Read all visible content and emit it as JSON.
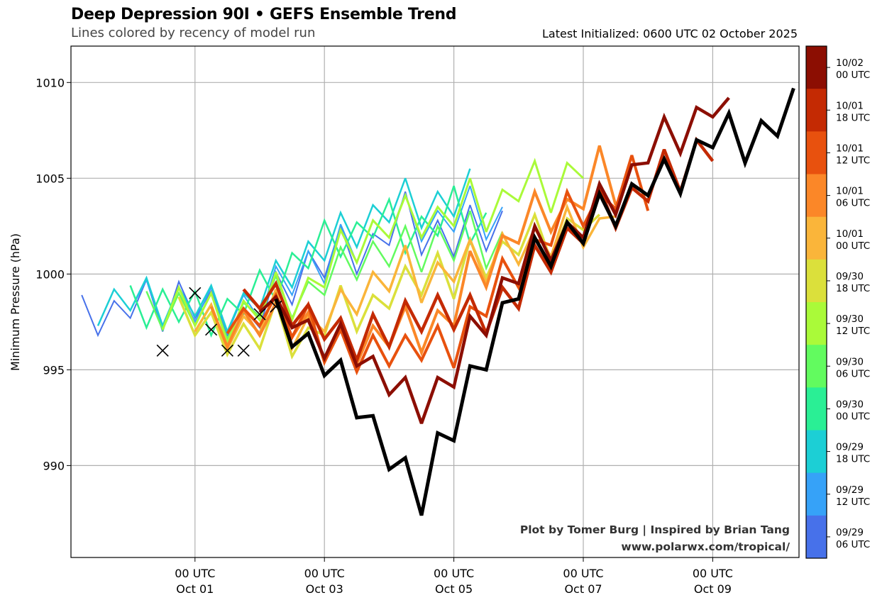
{
  "header": {
    "title": "Deep Depression 90I • GEFS Ensemble Trend",
    "subtitle": "Lines colored by recency of model run",
    "latest": "Latest Initialized: 0600 UTC 02 October 2025"
  },
  "credits": {
    "line1": "Plot by Tomer Burg | Inspired by Brian Tang",
    "line2": "www.polarwx.com/tropical/"
  },
  "chart_data": {
    "type": "line",
    "title": "Deep Depression 90I • GEFS Ensemble Trend",
    "subtitle": "Lines colored by recency of model run",
    "xlabel": "",
    "ylabel": "Minimum Pressure (hPa)",
    "x_unit": "hours since 00 UTC Oct 01 2025",
    "x_step_hours": 6,
    "xlim_hours": [
      -46,
      224
    ],
    "ylim": [
      985.2,
      1011.9
    ],
    "grid": true,
    "x_ticks": [
      {
        "hours": 0,
        "line1": "00 UTC",
        "line2": "Oct 01"
      },
      {
        "hours": 48,
        "line1": "00 UTC",
        "line2": "Oct 03"
      },
      {
        "hours": 96,
        "line1": "00 UTC",
        "line2": "Oct 05"
      },
      {
        "hours": 144,
        "line1": "00 UTC",
        "line2": "Oct 07"
      },
      {
        "hours": 192,
        "line1": "00 UTC",
        "line2": "Oct 09"
      }
    ],
    "y_ticks": [
      990,
      995,
      1000,
      1005,
      1010
    ],
    "colorbar": {
      "orientation": "vertical",
      "placement": "right",
      "entries": [
        {
          "label1": "10/02",
          "label2": "00 UTC",
          "color": "#8c0e02"
        },
        {
          "label1": "10/01",
          "label2": "18 UTC",
          "color": "#c42a03"
        },
        {
          "label1": "10/01",
          "label2": "12 UTC",
          "color": "#e8510e"
        },
        {
          "label1": "10/01",
          "label2": "06 UTC",
          "color": "#fb8728"
        },
        {
          "label1": "10/01",
          "label2": "00 UTC",
          "color": "#fab53a"
        },
        {
          "label1": "09/30",
          "label2": "18 UTC",
          "color": "#dbe03b"
        },
        {
          "label1": "09/30",
          "label2": "12 UTC",
          "color": "#aafa39"
        },
        {
          "label1": "09/30",
          "label2": "06 UTC",
          "color": "#62fb5f"
        },
        {
          "label1": "09/30",
          "label2": "00 UTC",
          "color": "#2aef95"
        },
        {
          "label1": "09/29",
          "label2": "18 UTC",
          "color": "#1ccfd5"
        },
        {
          "label1": "09/29",
          "label2": "12 UTC",
          "color": "#36a2f8"
        },
        {
          "label1": "09/29",
          "label2": "06 UTC",
          "color": "#4771ea"
        }
      ]
    },
    "observations": {
      "marker": "x",
      "color": "#000000",
      "points": [
        {
          "hours": -12,
          "value": 996.0
        },
        {
          "hours": 0,
          "value": 999.0
        },
        {
          "hours": 6,
          "value": 997.1
        },
        {
          "hours": 12,
          "value": 996.0
        },
        {
          "hours": 18,
          "value": 996.0
        },
        {
          "hours": 24,
          "value": 997.9
        },
        {
          "hours": 30,
          "value": 998.3
        }
      ]
    },
    "series": [
      {
        "name": "09/29 06 UTC",
        "color": "#4771ea",
        "width": 2,
        "start_hours": -42,
        "values": [
          998.9,
          996.8,
          998.6,
          997.7,
          999.7,
          997.0,
          999.6,
          997.7,
          999.1,
          996.8,
          998.2,
          997.2,
          1000.1,
          998.4,
          1001.2,
          999.8,
          1002.5,
          1000.0,
          1002.1,
          1001.5,
          1004.3,
          1001.0,
          1002.8,
          1000.9,
          1003.6,
          1001.2,
          1003.3
        ]
      },
      {
        "name": "09/29 12 UTC",
        "color": "#36a2f8",
        "width": 2,
        "start_hours": -36,
        "values": [
          997.3,
          999.2,
          998.1,
          999.7,
          997.2,
          999.3,
          997.5,
          999.3,
          996.9,
          998.9,
          997.6,
          1000.4,
          998.9,
          1001.2,
          999.5,
          1002.6,
          1000.6,
          1002.8,
          1001.9,
          1004.2,
          1001.7,
          1003.3,
          1002.2,
          1004.6,
          1001.8,
          1003.5
        ]
      },
      {
        "name": "09/29 18 UTC",
        "color": "#1ccfd5",
        "width": 2.5,
        "start_hours": -36,
        "values": [
          997.3,
          999.2,
          998.1,
          999.8,
          997.3,
          999.3,
          997.8,
          999.4,
          997.0,
          999.0,
          998.2,
          1000.7,
          999.3,
          1001.7,
          1000.7,
          1003.2,
          1001.4,
          1003.6,
          1002.7,
          1005.0,
          1002.4,
          1004.3,
          1003.0,
          1005.5
        ]
      },
      {
        "name": "09/30 00 UTC",
        "color": "#2aef95",
        "width": 2.5,
        "start_hours": -24,
        "values": [
          999.4,
          997.2,
          999.2,
          997.5,
          999.1,
          996.8,
          998.7,
          997.9,
          1000.2,
          998.6,
          1001.1,
          1000.3,
          1002.8,
          1000.9,
          1002.7,
          1001.9,
          1003.9,
          1001.1,
          1003.0,
          1002.0,
          1004.6,
          1001.6,
          1003.2
        ]
      },
      {
        "name": "09/30 06 UTC",
        "color": "#62fb5f",
        "width": 2.5,
        "start_hours": -18,
        "values": [
          999.1,
          997.1,
          999.0,
          997.3,
          999.0,
          996.6,
          998.5,
          997.8,
          999.9,
          997.7,
          999.6,
          998.9,
          1001.4,
          999.7,
          1001.7,
          1000.4,
          1002.5,
          1000.1,
          1002.5,
          1000.7,
          1003.3,
          1000.3,
          1002.2
        ]
      },
      {
        "name": "09/30 12 UTC",
        "color": "#aafa39",
        "width": 3,
        "start_hours": -12,
        "values": [
          997.1,
          999.3,
          997.3,
          999.0,
          996.4,
          998.6,
          997.6,
          1000.1,
          997.6,
          999.8,
          999.3,
          1002.3,
          1000.6,
          1002.8,
          1001.9,
          1004.1,
          1001.9,
          1003.5,
          1002.5,
          1005.0,
          1002.2,
          1004.4,
          1003.8,
          1005.9,
          1003.2,
          1005.8,
          1005.0
        ]
      },
      {
        "name": "09/30 18 UTC",
        "color": "#dbe03b",
        "width": 3.5,
        "start_hours": -6,
        "values": [
          998.8,
          996.8,
          998.0,
          995.8,
          997.4,
          996.1,
          998.6,
          995.7,
          997.2,
          996.8,
          999.4,
          997.0,
          998.9,
          998.2,
          1000.4,
          998.9,
          1001.1,
          998.7,
          1001.8,
          999.8,
          1001.7,
          1001.0,
          1003.1,
          1000.7,
          1002.9,
          1002.3,
          1003.1
        ]
      },
      {
        "name": "10/01 00 UTC",
        "color": "#fab53a",
        "width": 3.5,
        "start_hours": 0,
        "values": [
          997.0,
          998.4,
          996.1,
          997.8,
          996.9,
          999.2,
          996.1,
          997.8,
          997.0,
          999.2,
          997.9,
          1000.1,
          999.1,
          1001.5,
          998.5,
          1000.6,
          999.6,
          1001.8,
          999.5,
          1002.1,
          1000.5,
          1002.4,
          1000.9,
          1003.5,
          1001.4,
          1002.9,
          1003.0
        ]
      },
      {
        "name": "10/01 06 UTC",
        "color": "#fb8728",
        "width": 4,
        "start_hours": 6,
        "values": [
          998.3,
          996.2,
          998.1,
          996.8,
          998.5,
          996.7,
          998.0,
          995.4,
          997.2,
          995.3,
          997.3,
          996.2,
          998.3,
          995.9,
          998.1,
          997.3,
          1001.2,
          999.3,
          1002.0,
          1001.6,
          1004.3,
          1002.2,
          1003.9,
          1003.4,
          1006.7,
          1003.6
        ]
      },
      {
        "name": "10/01 12 UTC",
        "color": "#e8510e",
        "width": 4,
        "start_hours": 12,
        "values": [
          996.9,
          998.2,
          997.3,
          998.9,
          996.7,
          998.4,
          995.4,
          997.1,
          994.9,
          996.8,
          995.2,
          996.8,
          995.5,
          997.3,
          995.1,
          998.3,
          997.8,
          1000.8,
          999.3,
          1001.8,
          1001.5,
          1004.3,
          1002.5,
          1004.2,
          1003.4,
          1006.2,
          1003.3
        ]
      },
      {
        "name": "10/01 18 UTC",
        "color": "#c42a03",
        "width": 4.5,
        "start_hours": 18,
        "values": [
          999.2,
          998.2,
          999.5,
          997.3,
          998.4,
          996.6,
          997.7,
          995.5,
          997.9,
          996.2,
          998.6,
          997.0,
          998.9,
          997.1,
          998.9,
          996.9,
          999.3,
          998.2,
          1001.5,
          1000.1,
          1002.4,
          1001.6,
          1004.5,
          1002.4,
          1004.5,
          1003.8,
          1006.5,
          1004.3,
          1007.0,
          1005.9
        ]
      },
      {
        "name": "10/02 00 UTC",
        "color": "#8c0e02",
        "width": 4.5,
        "start_hours": 24,
        "values": [
          998.0,
          998.8,
          997.2,
          997.6,
          995.6,
          997.4,
          995.2,
          995.7,
          993.7,
          994.6,
          992.2,
          994.6,
          994.1,
          997.8,
          996.8,
          999.8,
          999.5,
          1002.5,
          1000.7,
          1002.7,
          1001.9,
          1004.7,
          1003.1,
          1005.7,
          1005.8,
          1008.2,
          1006.3,
          1008.7,
          1008.2,
          1009.2
        ]
      },
      {
        "name": "10/02 06 UTC",
        "color": "#000000",
        "width": 5,
        "start_hours": 30,
        "values": [
          998.7,
          996.2,
          996.9,
          994.7,
          995.5,
          992.5,
          992.6,
          989.8,
          990.4,
          987.4,
          991.7,
          991.3,
          995.2,
          995.0,
          998.5,
          998.7,
          1001.9,
          1000.4,
          1002.7,
          1001.6,
          1004.2,
          1002.5,
          1004.7,
          1004.1,
          1006.0,
          1004.2,
          1007.0,
          1006.6,
          1008.4,
          1005.8,
          1008.0,
          1007.2,
          1009.7
        ]
      }
    ]
  }
}
